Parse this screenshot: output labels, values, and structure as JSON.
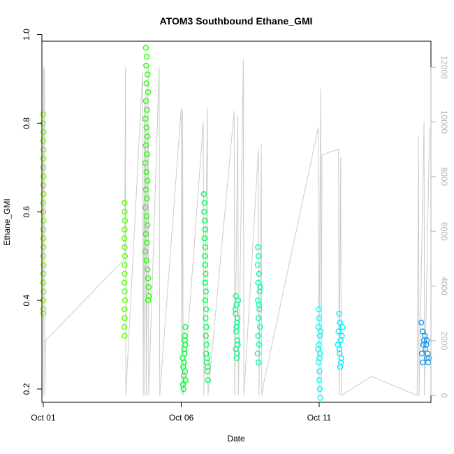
{
  "chart_data": {
    "type": "scatter",
    "title": "ATOM3 Southbound Ethane_GMI",
    "xlabel": "Date",
    "ylabel": "Ethane_GMI",
    "x_ticks": [
      "Oct 01",
      "Oct 06",
      "Oct 11"
    ],
    "x_tick_days": [
      1,
      6,
      11
    ],
    "xlim": [
      0.95,
      15.05
    ],
    "y_ticks": [
      0.2,
      0.4,
      0.6,
      0.8,
      1.0
    ],
    "y_tick_labels": [
      "0.2",
      "0.4",
      "0.6",
      "0.8",
      "1.0"
    ],
    "ylim": [
      0.17,
      0.985
    ],
    "y2_ticks": [
      0,
      2000,
      4000,
      6000,
      8000,
      10000,
      12000
    ],
    "y2_tick_labels": [
      "0",
      "2000",
      "4000",
      "6000",
      "8000",
      "10000",
      "12000"
    ],
    "y2lim": [
      -250,
      12950
    ],
    "grid": false,
    "marker": "open-circle",
    "series": [
      {
        "color": "#7fff00",
        "points": [
          [
            1.0,
            0.82
          ],
          [
            1.0,
            0.8
          ],
          [
            1.01,
            0.78
          ],
          [
            1.0,
            0.76
          ],
          [
            1.01,
            0.74
          ],
          [
            1.0,
            0.72
          ],
          [
            1.0,
            0.7
          ],
          [
            1.01,
            0.68
          ],
          [
            1.0,
            0.66
          ],
          [
            1.01,
            0.64
          ],
          [
            1.0,
            0.62
          ],
          [
            1.0,
            0.6
          ],
          [
            1.01,
            0.58
          ],
          [
            1.0,
            0.56
          ],
          [
            1.0,
            0.54
          ],
          [
            1.01,
            0.52
          ],
          [
            1.0,
            0.5
          ],
          [
            1.01,
            0.48
          ],
          [
            1.0,
            0.46
          ],
          [
            1.0,
            0.44
          ],
          [
            1.01,
            0.42
          ],
          [
            1.0,
            0.4
          ],
          [
            1.0,
            0.38
          ],
          [
            1.0,
            0.37
          ]
        ]
      },
      {
        "color": "#55ff00",
        "points": [
          [
            3.95,
            0.62
          ],
          [
            3.95,
            0.6
          ],
          [
            3.96,
            0.58
          ],
          [
            3.95,
            0.56
          ],
          [
            3.94,
            0.54
          ],
          [
            3.95,
            0.52
          ],
          [
            3.96,
            0.5
          ],
          [
            3.95,
            0.48
          ],
          [
            3.95,
            0.46
          ],
          [
            3.94,
            0.44
          ],
          [
            3.95,
            0.42
          ],
          [
            3.96,
            0.4
          ],
          [
            3.95,
            0.38
          ],
          [
            3.95,
            0.36
          ],
          [
            3.94,
            0.34
          ],
          [
            3.95,
            0.32
          ]
        ]
      },
      {
        "color": "#22ff00",
        "points": [
          [
            4.72,
            0.97
          ],
          [
            4.75,
            0.95
          ],
          [
            4.73,
            0.93
          ],
          [
            4.78,
            0.91
          ],
          [
            4.74,
            0.89
          ],
          [
            4.8,
            0.87
          ],
          [
            4.72,
            0.85
          ],
          [
            4.76,
            0.83
          ],
          [
            4.7,
            0.81
          ],
          [
            4.74,
            0.79
          ],
          [
            4.78,
            0.77
          ],
          [
            4.72,
            0.75
          ],
          [
            4.76,
            0.73
          ],
          [
            4.7,
            0.71
          ],
          [
            4.74,
            0.69
          ],
          [
            4.78,
            0.67
          ],
          [
            4.72,
            0.65
          ],
          [
            4.76,
            0.63
          ],
          [
            4.7,
            0.61
          ],
          [
            4.74,
            0.59
          ],
          [
            4.78,
            0.57
          ],
          [
            4.72,
            0.55
          ],
          [
            4.76,
            0.53
          ],
          [
            4.7,
            0.51
          ],
          [
            4.74,
            0.49
          ],
          [
            4.78,
            0.47
          ],
          [
            4.8,
            0.45
          ],
          [
            4.82,
            0.43
          ],
          [
            4.82,
            0.41
          ],
          [
            4.8,
            0.4
          ]
        ]
      },
      {
        "color": "#00ff33",
        "points": [
          [
            6.05,
            0.27
          ],
          [
            6.07,
            0.25
          ],
          [
            6.09,
            0.23
          ],
          [
            6.06,
            0.21
          ],
          [
            6.08,
            0.2
          ],
          [
            6.15,
            0.34
          ],
          [
            6.13,
            0.32
          ],
          [
            6.15,
            0.3
          ],
          [
            6.12,
            0.28
          ],
          [
            6.1,
            0.26
          ],
          [
            6.14,
            0.24
          ],
          [
            6.16,
            0.22
          ],
          [
            6.11,
            0.29
          ],
          [
            6.13,
            0.31
          ]
        ]
      },
      {
        "color": "#00ff55",
        "points": [
          [
            6.82,
            0.64
          ],
          [
            6.84,
            0.62
          ],
          [
            6.83,
            0.6
          ],
          [
            6.85,
            0.58
          ],
          [
            6.86,
            0.56
          ],
          [
            6.84,
            0.54
          ],
          [
            6.87,
            0.52
          ],
          [
            6.85,
            0.5
          ],
          [
            6.86,
            0.48
          ],
          [
            6.88,
            0.46
          ],
          [
            6.86,
            0.44
          ],
          [
            6.89,
            0.42
          ],
          [
            6.87,
            0.4
          ],
          [
            6.9,
            0.38
          ],
          [
            6.88,
            0.36
          ],
          [
            6.91,
            0.34
          ],
          [
            6.89,
            0.32
          ],
          [
            6.92,
            0.3
          ],
          [
            6.9,
            0.28
          ],
          [
            6.93,
            0.26
          ],
          [
            6.95,
            0.24
          ],
          [
            6.97,
            0.22
          ],
          [
            6.94,
            0.27
          ],
          [
            6.96,
            0.25
          ]
        ]
      },
      {
        "color": "#00ff88",
        "points": [
          [
            7.98,
            0.41
          ],
          [
            8.0,
            0.39
          ],
          [
            7.97,
            0.37
          ],
          [
            8.02,
            0.35
          ],
          [
            7.99,
            0.33
          ],
          [
            8.03,
            0.31
          ],
          [
            7.98,
            0.29
          ],
          [
            8.01,
            0.27
          ],
          [
            8.04,
            0.36
          ],
          [
            8.06,
            0.4
          ],
          [
            8.0,
            0.34
          ],
          [
            8.05,
            0.3
          ],
          [
            7.96,
            0.38
          ],
          [
            8.02,
            0.28
          ]
        ]
      },
      {
        "color": "#00ffaa",
        "points": [
          [
            8.78,
            0.52
          ],
          [
            8.8,
            0.5
          ],
          [
            8.77,
            0.48
          ],
          [
            8.82,
            0.46
          ],
          [
            8.79,
            0.44
          ],
          [
            8.84,
            0.42
          ],
          [
            8.78,
            0.4
          ],
          [
            8.83,
            0.38
          ],
          [
            8.8,
            0.36
          ],
          [
            8.85,
            0.34
          ],
          [
            8.79,
            0.32
          ],
          [
            8.82,
            0.3
          ],
          [
            8.77,
            0.28
          ],
          [
            8.8,
            0.26
          ],
          [
            8.86,
            0.43
          ],
          [
            8.81,
            0.39
          ]
        ]
      },
      {
        "color": "#00ffff",
        "points": [
          [
            10.98,
            0.38
          ],
          [
            11.0,
            0.36
          ],
          [
            10.97,
            0.34
          ],
          [
            11.02,
            0.32
          ],
          [
            10.99,
            0.3
          ],
          [
            11.03,
            0.28
          ],
          [
            10.98,
            0.26
          ],
          [
            11.01,
            0.24
          ],
          [
            11.0,
            0.22
          ],
          [
            11.02,
            0.2
          ],
          [
            11.04,
            0.18
          ],
          [
            10.96,
            0.29
          ],
          [
            11.05,
            0.33
          ],
          [
            11.01,
            0.27
          ]
        ]
      },
      {
        "color": "#00eeff",
        "points": [
          [
            11.72,
            0.37
          ],
          [
            11.75,
            0.35
          ],
          [
            11.7,
            0.33
          ],
          [
            11.78,
            0.31
          ],
          [
            11.73,
            0.29
          ],
          [
            11.8,
            0.27
          ],
          [
            11.76,
            0.25
          ],
          [
            11.82,
            0.32
          ],
          [
            11.68,
            0.3
          ],
          [
            11.85,
            0.34
          ],
          [
            11.74,
            0.28
          ],
          [
            11.79,
            0.26
          ]
        ]
      },
      {
        "color": "#1199ee",
        "points": [
          [
            14.7,
            0.35
          ],
          [
            14.75,
            0.33
          ],
          [
            14.8,
            0.31
          ],
          [
            14.85,
            0.29
          ],
          [
            14.9,
            0.27
          ],
          [
            14.95,
            0.26
          ],
          [
            14.72,
            0.28
          ],
          [
            14.78,
            0.3
          ],
          [
            14.83,
            0.32
          ],
          [
            14.88,
            0.3
          ],
          [
            14.93,
            0.28
          ],
          [
            14.98,
            0.27
          ],
          [
            14.76,
            0.26
          ],
          [
            14.9,
            0.31
          ]
        ]
      }
    ],
    "overlay_line": {
      "color": "#cccccc",
      "axis": "right",
      "points": [
        [
          1.0,
          0
        ],
        [
          1.02,
          12000
        ],
        [
          1.04,
          11900
        ],
        [
          1.06,
          0
        ],
        [
          1.08,
          2000
        ],
        [
          3.95,
          5000
        ],
        [
          3.98,
          12000
        ],
        [
          3.99,
          0
        ],
        [
          4.6,
          11800
        ],
        [
          4.62,
          0
        ],
        [
          4.66,
          10800
        ],
        [
          4.68,
          0
        ],
        [
          4.72,
          11200
        ],
        [
          4.74,
          0
        ],
        [
          4.8,
          12000
        ],
        [
          4.82,
          0
        ],
        [
          5.2,
          12000
        ],
        [
          5.22,
          0
        ],
        [
          6.0,
          10500
        ],
        [
          6.02,
          0
        ],
        [
          6.05,
          10400
        ],
        [
          6.07,
          0
        ],
        [
          6.8,
          10000
        ],
        [
          6.82,
          0
        ],
        [
          6.95,
          10500
        ],
        [
          6.97,
          0
        ],
        [
          7.92,
          10400
        ],
        [
          7.94,
          0
        ],
        [
          8.05,
          10300
        ],
        [
          8.07,
          0
        ],
        [
          8.25,
          12300
        ],
        [
          8.27,
          0
        ],
        [
          8.8,
          9000
        ],
        [
          8.82,
          0
        ],
        [
          8.9,
          9200
        ],
        [
          8.92,
          0
        ],
        [
          9.0,
          500
        ],
        [
          10.97,
          9800
        ],
        [
          10.99,
          0
        ],
        [
          11.05,
          11200
        ],
        [
          11.07,
          0
        ],
        [
          11.1,
          8800
        ],
        [
          11.7,
          9000
        ],
        [
          11.72,
          0
        ],
        [
          11.78,
          8700
        ],
        [
          11.8,
          0
        ],
        [
          12.9,
          700
        ],
        [
          14.55,
          0
        ],
        [
          14.6,
          9500
        ],
        [
          14.62,
          0
        ],
        [
          14.8,
          10000
        ],
        [
          14.82,
          0
        ],
        [
          15.0,
          9800
        ]
      ]
    }
  }
}
